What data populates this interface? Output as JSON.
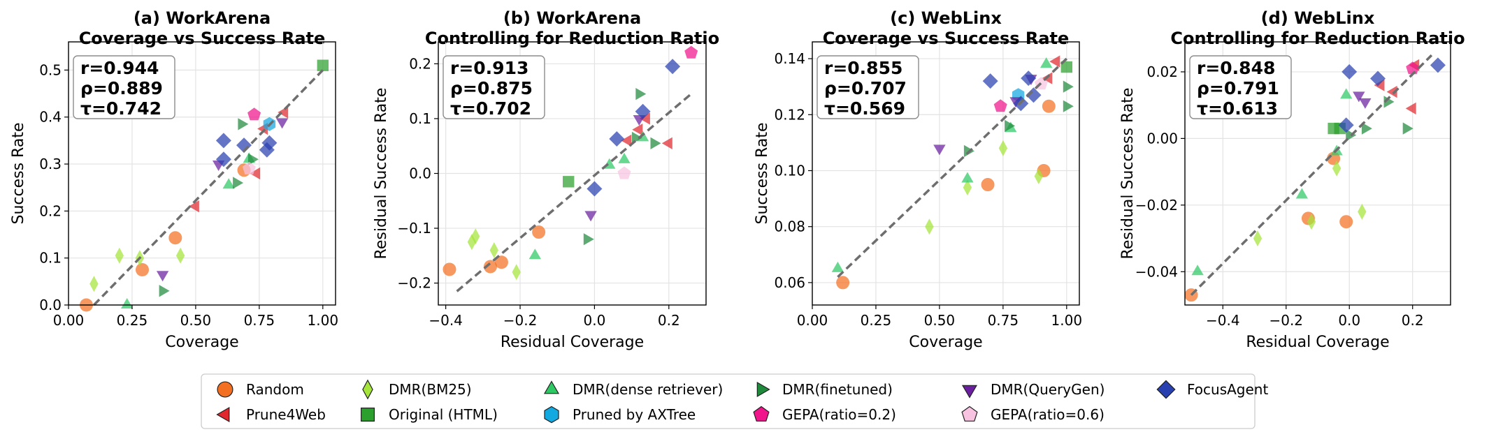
{
  "chart_data": [
    {
      "type": "scatter",
      "title_line1": "(a) WorkArena",
      "title_line2": "Coverage vs Success Rate",
      "xlabel": "Coverage",
      "ylabel": "Success Rate",
      "xlim": [
        0.0,
        1.05
      ],
      "ylim": [
        0.0,
        0.56
      ],
      "xticks": [
        0.0,
        0.25,
        0.5,
        0.75,
        1.0
      ],
      "xticklabels": [
        "0.00",
        "0.25",
        "0.50",
        "0.75",
        "1.00"
      ],
      "yticks": [
        0.0,
        0.1,
        0.2,
        0.3,
        0.4,
        0.5
      ],
      "yticklabels": [
        "0.0",
        "0.1",
        "0.2",
        "0.3",
        "0.4",
        "0.5"
      ],
      "grid": true,
      "stats": [
        "r=0.944",
        "ρ=0.889",
        "τ=0.742"
      ],
      "fit": [
        [
          0.1,
          0.0
        ],
        [
          1.0,
          0.5
        ]
      ],
      "points": [
        {
          "s": "random",
          "x": 0.07,
          "y": 0.0
        },
        {
          "s": "random",
          "x": 0.29,
          "y": 0.075
        },
        {
          "s": "random",
          "x": 0.42,
          "y": 0.143
        },
        {
          "s": "random",
          "x": 0.69,
          "y": 0.287
        },
        {
          "s": "prune4web",
          "x": 0.5,
          "y": 0.21
        },
        {
          "s": "prune4web",
          "x": 0.74,
          "y": 0.28
        },
        {
          "s": "prune4web",
          "x": 0.77,
          "y": 0.375
        },
        {
          "s": "prune4web",
          "x": 0.85,
          "y": 0.41
        },
        {
          "s": "bm25",
          "x": 0.1,
          "y": 0.045
        },
        {
          "s": "bm25",
          "x": 0.2,
          "y": 0.105
        },
        {
          "s": "bm25",
          "x": 0.28,
          "y": 0.1
        },
        {
          "s": "bm25",
          "x": 0.44,
          "y": 0.105
        },
        {
          "s": "original",
          "x": 1.0,
          "y": 0.51
        },
        {
          "s": "dense",
          "x": 0.23,
          "y": 0.0
        },
        {
          "s": "dense",
          "x": 0.63,
          "y": 0.255
        },
        {
          "s": "dense",
          "x": 0.71,
          "y": 0.31
        },
        {
          "s": "axtree",
          "x": 0.79,
          "y": 0.385
        },
        {
          "s": "finetuned",
          "x": 0.37,
          "y": 0.03
        },
        {
          "s": "finetuned",
          "x": 0.66,
          "y": 0.26
        },
        {
          "s": "finetuned",
          "x": 0.68,
          "y": 0.385
        },
        {
          "s": "finetuned",
          "x": 0.72,
          "y": 0.31
        },
        {
          "s": "gepa02",
          "x": 0.73,
          "y": 0.405
        },
        {
          "s": "gepa06",
          "x": 0.71,
          "y": 0.29
        },
        {
          "s": "querygen",
          "x": 0.37,
          "y": 0.065
        },
        {
          "s": "querygen",
          "x": 0.59,
          "y": 0.3
        },
        {
          "s": "querygen",
          "x": 0.84,
          "y": 0.39
        },
        {
          "s": "focus",
          "x": 0.61,
          "y": 0.31
        },
        {
          "s": "focus",
          "x": 0.61,
          "y": 0.35
        },
        {
          "s": "focus",
          "x": 0.69,
          "y": 0.34
        },
        {
          "s": "focus",
          "x": 0.78,
          "y": 0.33
        },
        {
          "s": "focus",
          "x": 0.79,
          "y": 0.345
        }
      ]
    },
    {
      "type": "scatter",
      "title_line1": "(b) WorkArena",
      "title_line2": "Controlling for Reduction Ratio",
      "xlabel": "Residual Coverage",
      "ylabel": "Residual Success Rate",
      "xlim": [
        -0.42,
        0.3
      ],
      "ylim": [
        -0.24,
        0.24
      ],
      "xticks": [
        -0.4,
        -0.2,
        0.0,
        0.2
      ],
      "xticklabels": [
        "−0.4",
        "−0.2",
        "0.0",
        "0.2"
      ],
      "yticks": [
        -0.2,
        -0.1,
        0.0,
        0.1,
        0.2
      ],
      "yticklabels": [
        "−0.2",
        "−0.1",
        "0.0",
        "0.1",
        "0.2"
      ],
      "grid": true,
      "stats": [
        "r=0.913",
        "ρ=0.875",
        "τ=0.702"
      ],
      "fit": [
        [
          -0.37,
          -0.215
        ],
        [
          0.26,
          0.145
        ]
      ],
      "points": [
        {
          "s": "random",
          "x": -0.39,
          "y": -0.175
        },
        {
          "s": "random",
          "x": -0.28,
          "y": -0.17
        },
        {
          "s": "random",
          "x": -0.25,
          "y": -0.162
        },
        {
          "s": "random",
          "x": -0.15,
          "y": -0.107
        },
        {
          "s": "prune4web",
          "x": 0.09,
          "y": 0.06
        },
        {
          "s": "prune4web",
          "x": 0.12,
          "y": 0.08
        },
        {
          "s": "prune4web",
          "x": 0.14,
          "y": 0.1
        },
        {
          "s": "prune4web",
          "x": 0.2,
          "y": 0.055
        },
        {
          "s": "bm25",
          "x": -0.33,
          "y": -0.125
        },
        {
          "s": "bm25",
          "x": -0.32,
          "y": -0.115
        },
        {
          "s": "bm25",
          "x": -0.27,
          "y": -0.14
        },
        {
          "s": "bm25",
          "x": -0.21,
          "y": -0.18
        },
        {
          "s": "original",
          "x": -0.07,
          "y": -0.015
        },
        {
          "s": "dense",
          "x": -0.16,
          "y": -0.15
        },
        {
          "s": "dense",
          "x": 0.04,
          "y": 0.015
        },
        {
          "s": "dense",
          "x": 0.08,
          "y": 0.025
        },
        {
          "s": "dense",
          "x": 0.13,
          "y": 0.065
        },
        {
          "s": "finetuned",
          "x": -0.02,
          "y": -0.12
        },
        {
          "s": "finetuned",
          "x": 0.11,
          "y": 0.065
        },
        {
          "s": "finetuned",
          "x": 0.12,
          "y": 0.145
        },
        {
          "s": "finetuned",
          "x": 0.16,
          "y": 0.055
        },
        {
          "s": "gepa02",
          "x": 0.26,
          "y": 0.22
        },
        {
          "s": "gepa06",
          "x": 0.08,
          "y": 0.0
        },
        {
          "s": "querygen",
          "x": -0.01,
          "y": -0.075
        },
        {
          "s": "querygen",
          "x": 0.12,
          "y": 0.1
        },
        {
          "s": "focus",
          "x": 0.0,
          "y": -0.028
        },
        {
          "s": "focus",
          "x": 0.06,
          "y": 0.063
        },
        {
          "s": "focus",
          "x": 0.13,
          "y": 0.113
        },
        {
          "s": "focus",
          "x": 0.21,
          "y": 0.195
        }
      ]
    },
    {
      "type": "scatter",
      "title_line1": "(c) WebLinx",
      "title_line2": "Coverage vs Success Rate",
      "xlabel": "Coverage",
      "ylabel": "Success Rate",
      "xlim": [
        0.0,
        1.05
      ],
      "ylim": [
        0.052,
        0.146
      ],
      "xticks": [
        0.0,
        0.25,
        0.5,
        0.75,
        1.0
      ],
      "xticklabels": [
        "0.00",
        "0.25",
        "0.50",
        "0.75",
        "1.00"
      ],
      "yticks": [
        0.06,
        0.08,
        0.1,
        0.12,
        0.14
      ],
      "yticklabels": [
        "0.06",
        "0.08",
        "0.10",
        "0.12",
        "0.14"
      ],
      "grid": true,
      "stats": [
        "r=0.855",
        "ρ=0.707",
        "τ=0.569"
      ],
      "fit": [
        [
          0.1,
          0.062
        ],
        [
          1.0,
          0.14
        ]
      ],
      "points": [
        {
          "s": "random",
          "x": 0.12,
          "y": 0.06
        },
        {
          "s": "random",
          "x": 0.69,
          "y": 0.095
        },
        {
          "s": "random",
          "x": 0.91,
          "y": 0.1
        },
        {
          "s": "random",
          "x": 0.93,
          "y": 0.123
        },
        {
          "s": "prune4web",
          "x": 0.93,
          "y": 0.133
        },
        {
          "s": "prune4web",
          "x": 0.96,
          "y": 0.139
        },
        {
          "s": "bm25",
          "x": 0.46,
          "y": 0.08
        },
        {
          "s": "bm25",
          "x": 0.61,
          "y": 0.094
        },
        {
          "s": "bm25",
          "x": 0.75,
          "y": 0.108
        },
        {
          "s": "bm25",
          "x": 0.89,
          "y": 0.098
        },
        {
          "s": "original",
          "x": 1.0,
          "y": 0.137
        },
        {
          "s": "dense",
          "x": 0.1,
          "y": 0.065
        },
        {
          "s": "dense",
          "x": 0.61,
          "y": 0.097
        },
        {
          "s": "dense",
          "x": 0.78,
          "y": 0.115
        },
        {
          "s": "dense",
          "x": 0.92,
          "y": 0.138
        },
        {
          "s": "axtree",
          "x": 0.81,
          "y": 0.127
        },
        {
          "s": "finetuned",
          "x": 0.61,
          "y": 0.107
        },
        {
          "s": "finetuned",
          "x": 0.77,
          "y": 0.116
        },
        {
          "s": "finetuned",
          "x": 1.0,
          "y": 0.123
        },
        {
          "s": "finetuned",
          "x": 1.0,
          "y": 0.13
        },
        {
          "s": "gepa02",
          "x": 0.74,
          "y": 0.123
        },
        {
          "s": "gepa06",
          "x": 0.9,
          "y": 0.131
        },
        {
          "s": "querygen",
          "x": 0.5,
          "y": 0.108
        },
        {
          "s": "querygen",
          "x": 0.8,
          "y": 0.125
        },
        {
          "s": "querygen",
          "x": 0.86,
          "y": 0.133
        },
        {
          "s": "focus",
          "x": 0.7,
          "y": 0.132
        },
        {
          "s": "focus",
          "x": 0.82,
          "y": 0.124
        },
        {
          "s": "focus",
          "x": 0.85,
          "y": 0.133
        },
        {
          "s": "focus",
          "x": 0.87,
          "y": 0.127
        }
      ]
    },
    {
      "type": "scatter",
      "title_line1": "(d) WebLinx",
      "title_line2": "Controlling for Reduction Ratio",
      "xlabel": "Residual Coverage",
      "ylabel": "Residual Success Rate",
      "xlim": [
        -0.52,
        0.32
      ],
      "ylim": [
        -0.05,
        0.029
      ],
      "xticks": [
        -0.4,
        -0.2,
        0.0,
        0.2
      ],
      "xticklabels": [
        "−0.4",
        "−0.2",
        "0.0",
        "0.2"
      ],
      "yticks": [
        -0.04,
        -0.02,
        0.0,
        0.02
      ],
      "yticklabels": [
        "−0.04",
        "−0.02",
        "0.00",
        "0.02"
      ],
      "grid": true,
      "stats": [
        "r=0.848",
        "ρ=0.791",
        "τ=0.613"
      ],
      "fit": [
        [
          -0.5,
          -0.047
        ],
        [
          0.26,
          0.025
        ]
      ],
      "points": [
        {
          "s": "random",
          "x": -0.5,
          "y": -0.047
        },
        {
          "s": "random",
          "x": -0.13,
          "y": -0.024
        },
        {
          "s": "random",
          "x": -0.05,
          "y": -0.006
        },
        {
          "s": "random",
          "x": -0.01,
          "y": -0.025
        },
        {
          "s": "prune4web",
          "x": 0.1,
          "y": 0.016
        },
        {
          "s": "prune4web",
          "x": 0.14,
          "y": 0.014
        },
        {
          "s": "prune4web",
          "x": 0.2,
          "y": 0.009
        },
        {
          "s": "prune4web",
          "x": 0.21,
          "y": 0.022
        },
        {
          "s": "bm25",
          "x": -0.29,
          "y": -0.03
        },
        {
          "s": "bm25",
          "x": -0.12,
          "y": -0.025
        },
        {
          "s": "bm25",
          "x": -0.04,
          "y": -0.009
        },
        {
          "s": "bm25",
          "x": 0.04,
          "y": -0.022
        },
        {
          "s": "original",
          "x": -0.05,
          "y": 0.003
        },
        {
          "s": "original",
          "x": -0.03,
          "y": 0.003
        },
        {
          "s": "dense",
          "x": -0.48,
          "y": -0.04
        },
        {
          "s": "dense",
          "x": -0.15,
          "y": -0.017
        },
        {
          "s": "dense",
          "x": -0.04,
          "y": -0.004
        },
        {
          "s": "dense",
          "x": -0.01,
          "y": 0.013
        },
        {
          "s": "finetuned",
          "x": 0.0,
          "y": 0.001
        },
        {
          "s": "finetuned",
          "x": 0.05,
          "y": 0.003
        },
        {
          "s": "finetuned",
          "x": 0.12,
          "y": 0.011
        },
        {
          "s": "finetuned",
          "x": 0.18,
          "y": 0.003
        },
        {
          "s": "gepa02",
          "x": 0.2,
          "y": 0.021
        },
        {
          "s": "querygen",
          "x": 0.03,
          "y": 0.013
        },
        {
          "s": "querygen",
          "x": 0.05,
          "y": 0.011
        },
        {
          "s": "focus",
          "x": -0.01,
          "y": 0.004
        },
        {
          "s": "focus",
          "x": 0.0,
          "y": 0.02
        },
        {
          "s": "focus",
          "x": 0.09,
          "y": 0.018
        },
        {
          "s": "focus",
          "x": 0.28,
          "y": 0.022
        }
      ]
    }
  ],
  "legend": {
    "placement": "bottom-center",
    "entries": [
      {
        "key": "random",
        "label": "Random",
        "marker": "circle",
        "color": "#f37022"
      },
      {
        "key": "prune4web",
        "label": "Prune4Web",
        "marker": "triangle-left",
        "color": "#e0282e"
      },
      {
        "key": "bm25",
        "label": "DMR(BM25)",
        "marker": "thin-diamond",
        "color": "#a5e43a"
      },
      {
        "key": "original",
        "label": "Original (HTML)",
        "marker": "square",
        "color": "#2ca02c"
      },
      {
        "key": "dense",
        "label": "DMR(dense retriever)",
        "marker": "triangle-up",
        "color": "#2ec965"
      },
      {
        "key": "axtree",
        "label": "Pruned by AXTree",
        "marker": "hexagon",
        "color": "#12a8e0"
      },
      {
        "key": "finetuned",
        "label": "DMR(finetuned)",
        "marker": "triangle-right",
        "color": "#1f8a3c"
      },
      {
        "key": "gepa02",
        "label": "GEPA(ratio=0.2)",
        "marker": "pentagon",
        "color": "#f0158a"
      },
      {
        "key": "querygen",
        "label": "DMR(QueryGen)",
        "marker": "triangle-down",
        "color": "#6a1fa0"
      },
      {
        "key": "gepa06",
        "label": "GEPA(ratio=0.6)",
        "marker": "pentagon",
        "color": "#f8c3e0"
      },
      {
        "key": "focus",
        "label": "FocusAgent",
        "marker": "diamond",
        "color": "#2840b0"
      }
    ]
  }
}
